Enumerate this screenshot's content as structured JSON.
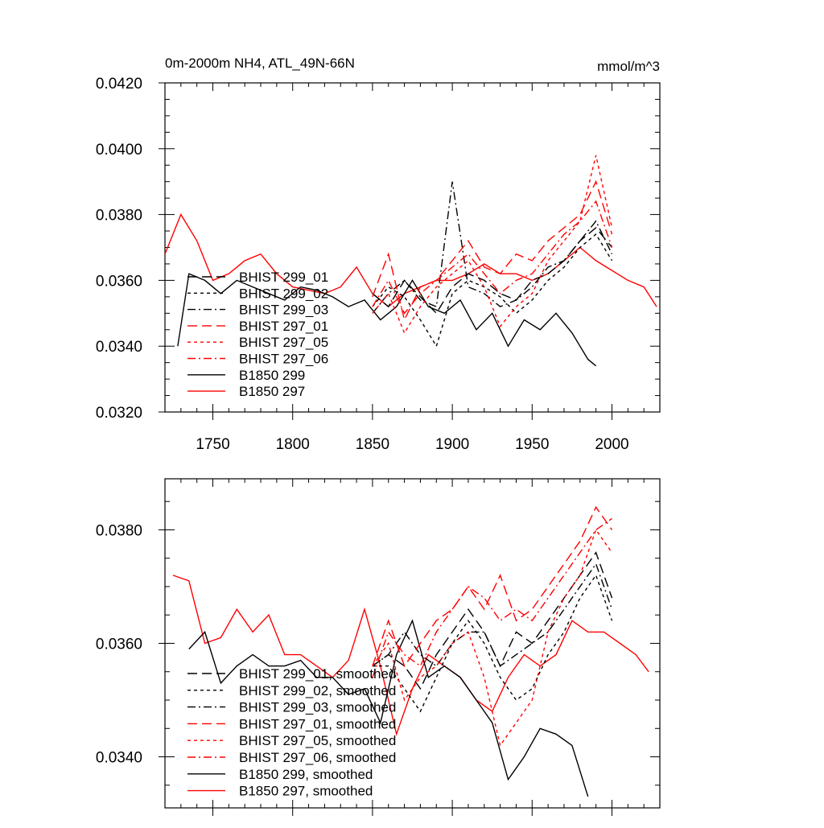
{
  "units": "mmol/m^3",
  "chart_data": [
    {
      "type": "line",
      "title": "0m-2000m NH4, ATL_49N-66N",
      "units": "mmol/m^3",
      "xlim": [
        1720,
        2030
      ],
      "ylim": [
        0.032,
        0.042
      ],
      "x_ticks": [
        1750,
        1800,
        1850,
        1900,
        1950,
        2000
      ],
      "x_tick_labels": [
        "1750",
        "1800",
        "1850",
        "1900",
        "1950",
        "2000"
      ],
      "y_ticks": [
        0.032,
        0.034,
        0.036,
        0.038,
        0.04,
        0.042
      ],
      "y_tick_labels": [
        "0.0320",
        "0.0340",
        "0.0360",
        "0.0380",
        "0.0400",
        "0.0420"
      ],
      "legend": [
        {
          "label": "BHIST 299_01",
          "color": "#000000",
          "dash": "12,6"
        },
        {
          "label": "BHIST 299_02",
          "color": "#000000",
          "dash": "4,4"
        },
        {
          "label": "BHIST 299_03",
          "color": "#000000",
          "dash": "10,4,2,4"
        },
        {
          "label": "BHIST 297_01",
          "color": "#ff0000",
          "dash": "12,6"
        },
        {
          "label": "BHIST 297_05",
          "color": "#ff0000",
          "dash": "4,4"
        },
        {
          "label": "BHIST 297_06",
          "color": "#ff0000",
          "dash": "10,4,2,4"
        },
        {
          "label": "B1850 299",
          "color": "#000000",
          "dash": ""
        },
        {
          "label": "B1850 297",
          "color": "#ff0000",
          "dash": ""
        }
      ],
      "series": [
        {
          "name": "B1850 297",
          "color": "#ff0000",
          "dash": "",
          "x": [
            1720,
            1730,
            1740,
            1750,
            1760,
            1770,
            1780,
            1790,
            1800,
            1810,
            1820,
            1830,
            1840,
            1850,
            1860,
            1870,
            1880,
            1890,
            1900,
            1910,
            1920,
            1930,
            1940,
            1950,
            1960,
            1970,
            1980,
            1990,
            2000,
            2010,
            2020,
            2028
          ],
          "y": [
            0.0368,
            0.038,
            0.0372,
            0.036,
            0.0362,
            0.0366,
            0.0368,
            0.0362,
            0.0358,
            0.0357,
            0.0356,
            0.0358,
            0.0364,
            0.0356,
            0.0352,
            0.0356,
            0.0358,
            0.036,
            0.036,
            0.0362,
            0.0365,
            0.0362,
            0.0362,
            0.036,
            0.0362,
            0.0366,
            0.037,
            0.0366,
            0.0363,
            0.036,
            0.0358,
            0.0352
          ]
        },
        {
          "name": "B1850 299",
          "color": "#000000",
          "dash": "",
          "x": [
            1728,
            1735,
            1745,
            1755,
            1765,
            1775,
            1785,
            1795,
            1805,
            1815,
            1825,
            1835,
            1845,
            1855,
            1865,
            1875,
            1885,
            1895,
            1905,
            1915,
            1925,
            1935,
            1945,
            1955,
            1965,
            1975,
            1985,
            1990
          ],
          "y": [
            0.034,
            0.0362,
            0.036,
            0.0356,
            0.036,
            0.0358,
            0.0356,
            0.0354,
            0.0358,
            0.0357,
            0.0355,
            0.0352,
            0.0354,
            0.0348,
            0.0352,
            0.036,
            0.0352,
            0.035,
            0.0354,
            0.0345,
            0.035,
            0.034,
            0.0348,
            0.0345,
            0.035,
            0.0344,
            0.0336,
            0.0334
          ]
        },
        {
          "name": "BHIST 299_01",
          "color": "#000000",
          "dash": "12,6",
          "x": [
            1850,
            1860,
            1870,
            1880,
            1890,
            1900,
            1910,
            1920,
            1930,
            1940,
            1950,
            1960,
            1970,
            1980,
            1990,
            2000
          ],
          "y": [
            0.0356,
            0.0352,
            0.036,
            0.0355,
            0.035,
            0.0358,
            0.0362,
            0.036,
            0.0356,
            0.0354,
            0.036,
            0.0362,
            0.0366,
            0.0372,
            0.0376,
            0.037
          ]
        },
        {
          "name": "BHIST 299_02",
          "color": "#000000",
          "dash": "4,4",
          "x": [
            1850,
            1860,
            1870,
            1880,
            1890,
            1900,
            1910,
            1920,
            1930,
            1940,
            1950,
            1960,
            1970,
            1980,
            1990,
            2000
          ],
          "y": [
            0.0352,
            0.0358,
            0.0355,
            0.0348,
            0.034,
            0.0356,
            0.036,
            0.0358,
            0.0355,
            0.035,
            0.0354,
            0.036,
            0.0364,
            0.037,
            0.0374,
            0.0366
          ]
        },
        {
          "name": "BHIST 299_03",
          "color": "#000000",
          "dash": "10,4,2,4",
          "x": [
            1850,
            1860,
            1870,
            1880,
            1890,
            1900,
            1910,
            1920,
            1930,
            1940,
            1950,
            1960,
            1970,
            1980,
            1990,
            2000
          ],
          "y": [
            0.035,
            0.0356,
            0.036,
            0.0354,
            0.0352,
            0.039,
            0.0358,
            0.0356,
            0.0352,
            0.0354,
            0.0358,
            0.0364,
            0.0366,
            0.0372,
            0.0378,
            0.0368
          ]
        },
        {
          "name": "BHIST 297_01",
          "color": "#ff0000",
          "dash": "12,6",
          "x": [
            1850,
            1860,
            1870,
            1880,
            1890,
            1900,
            1910,
            1920,
            1930,
            1940,
            1950,
            1960,
            1970,
            1980,
            1990,
            2000
          ],
          "y": [
            0.0355,
            0.0368,
            0.0348,
            0.0358,
            0.036,
            0.0366,
            0.0372,
            0.0364,
            0.0362,
            0.0368,
            0.0366,
            0.0372,
            0.0376,
            0.038,
            0.039,
            0.0374
          ]
        },
        {
          "name": "BHIST 297_05",
          "color": "#ff0000",
          "dash": "4,4",
          "x": [
            1850,
            1860,
            1870,
            1880,
            1890,
            1900,
            1910,
            1920,
            1930,
            1940,
            1950,
            1960,
            1970,
            1980,
            1990,
            2000
          ],
          "y": [
            0.035,
            0.0356,
            0.0344,
            0.0352,
            0.0358,
            0.0362,
            0.0366,
            0.0358,
            0.0346,
            0.0352,
            0.0356,
            0.0366,
            0.0372,
            0.0378,
            0.0398,
            0.0376
          ]
        },
        {
          "name": "BHIST 297_06",
          "color": "#ff0000",
          "dash": "10,4,2,4",
          "x": [
            1850,
            1860,
            1870,
            1880,
            1890,
            1900,
            1910,
            1920,
            1930,
            1940,
            1950,
            1960,
            1970,
            1980,
            1990,
            2000
          ],
          "y": [
            0.0352,
            0.036,
            0.035,
            0.0356,
            0.036,
            0.0364,
            0.0368,
            0.0362,
            0.0356,
            0.036,
            0.0362,
            0.0368,
            0.0374,
            0.0378,
            0.0384,
            0.037
          ]
        }
      ]
    },
    {
      "type": "line",
      "title": "",
      "xlim": [
        1720,
        2030
      ],
      "ylim": [
        0.0331,
        0.0389
      ],
      "x_ticks": [
        1750,
        1800,
        1850,
        1900,
        1950,
        2000
      ],
      "y_ticks": [
        0.034,
        0.036,
        0.038
      ],
      "y_tick_labels": [
        "0.0340",
        "0.0360",
        "0.0380"
      ],
      "legend": [
        {
          "label": "BHIST 299_01, smoothed",
          "color": "#000000",
          "dash": "12,6"
        },
        {
          "label": "BHIST 299_02, smoothed",
          "color": "#000000",
          "dash": "4,4"
        },
        {
          "label": "BHIST 299_03, smoothed",
          "color": "#000000",
          "dash": "10,4,2,4"
        },
        {
          "label": "BHIST 297_01, smoothed",
          "color": "#ff0000",
          "dash": "12,6"
        },
        {
          "label": "BHIST 297_05, smoothed",
          "color": "#ff0000",
          "dash": "4,4"
        },
        {
          "label": "BHIST 297_06, smoothed",
          "color": "#ff0000",
          "dash": "10,4,2,4"
        },
        {
          "label": "B1850 299, smoothed",
          "color": "#000000",
          "dash": ""
        },
        {
          "label": "B1850 297, smoothed",
          "color": "#ff0000",
          "dash": ""
        }
      ],
      "series": [
        {
          "name": "B1850 297, smoothed",
          "color": "#ff0000",
          "dash": "",
          "x": [
            1725,
            1735,
            1745,
            1755,
            1765,
            1775,
            1785,
            1795,
            1805,
            1815,
            1825,
            1835,
            1845,
            1855,
            1865,
            1875,
            1885,
            1895,
            1905,
            1915,
            1925,
            1935,
            1945,
            1955,
            1965,
            1975,
            1985,
            1995,
            2005,
            2015,
            2023
          ],
          "y": [
            0.0372,
            0.0371,
            0.036,
            0.0361,
            0.0366,
            0.0362,
            0.0365,
            0.0358,
            0.0358,
            0.0356,
            0.0354,
            0.0357,
            0.0366,
            0.0356,
            0.0344,
            0.0352,
            0.0358,
            0.0356,
            0.0354,
            0.035,
            0.0348,
            0.0354,
            0.0358,
            0.0356,
            0.0358,
            0.0364,
            0.0362,
            0.0362,
            0.036,
            0.0358,
            0.0355
          ]
        },
        {
          "name": "B1850 299, smoothed",
          "color": "#000000",
          "dash": "",
          "x": [
            1735,
            1745,
            1755,
            1765,
            1775,
            1785,
            1795,
            1805,
            1815,
            1825,
            1835,
            1845,
            1855,
            1865,
            1875,
            1885,
            1895,
            1905,
            1915,
            1925,
            1935,
            1945,
            1955,
            1965,
            1975,
            1985
          ],
          "y": [
            0.0359,
            0.0362,
            0.0353,
            0.0356,
            0.0358,
            0.0356,
            0.0356,
            0.0357,
            0.0354,
            0.0354,
            0.0351,
            0.0352,
            0.0346,
            0.0358,
            0.0364,
            0.0354,
            0.0356,
            0.0354,
            0.035,
            0.0346,
            0.0336,
            0.034,
            0.0345,
            0.0344,
            0.0342,
            0.0333
          ]
        },
        {
          "name": "BHIST 299_01, smoothed",
          "color": "#000000",
          "dash": "12,6",
          "x": [
            1850,
            1860,
            1870,
            1880,
            1890,
            1900,
            1910,
            1920,
            1930,
            1940,
            1950,
            1960,
            1970,
            1980,
            1990,
            2000
          ],
          "y": [
            0.0356,
            0.0358,
            0.0356,
            0.0352,
            0.0358,
            0.0362,
            0.0366,
            0.0362,
            0.0356,
            0.0362,
            0.036,
            0.0364,
            0.0368,
            0.0372,
            0.0376,
            0.0368
          ]
        },
        {
          "name": "BHIST 299_02, smoothed",
          "color": "#000000",
          "dash": "4,4",
          "x": [
            1850,
            1860,
            1870,
            1880,
            1890,
            1900,
            1910,
            1920,
            1930,
            1940,
            1950,
            1960,
            1970,
            1980,
            1990,
            2000
          ],
          "y": [
            0.0356,
            0.0356,
            0.0352,
            0.0348,
            0.0354,
            0.036,
            0.0364,
            0.036,
            0.0354,
            0.035,
            0.0352,
            0.0358,
            0.0362,
            0.0368,
            0.0372,
            0.0364
          ]
        },
        {
          "name": "BHIST 299_03, smoothed",
          "color": "#000000",
          "dash": "10,4,2,4",
          "x": [
            1850,
            1860,
            1870,
            1880,
            1890,
            1900,
            1910,
            1920,
            1930,
            1940,
            1950,
            1960,
            1970,
            1980,
            1990,
            2000
          ],
          "y": [
            0.0356,
            0.0358,
            0.0362,
            0.0358,
            0.0356,
            0.036,
            0.0362,
            0.0362,
            0.0356,
            0.0358,
            0.036,
            0.0362,
            0.0366,
            0.037,
            0.0374,
            0.0366
          ]
        },
        {
          "name": "BHIST 297_01, smoothed",
          "color": "#ff0000",
          "dash": "12,6",
          "x": [
            1850,
            1860,
            1870,
            1880,
            1890,
            1900,
            1910,
            1920,
            1930,
            1940,
            1950,
            1960,
            1970,
            1980,
            1990,
            2000
          ],
          "y": [
            0.0356,
            0.0364,
            0.0356,
            0.036,
            0.0364,
            0.0366,
            0.037,
            0.0366,
            0.0372,
            0.0364,
            0.0366,
            0.037,
            0.0374,
            0.0378,
            0.0384,
            0.038
          ]
        },
        {
          "name": "BHIST 297_05, smoothed",
          "color": "#ff0000",
          "dash": "4,4",
          "x": [
            1850,
            1860,
            1870,
            1880,
            1890,
            1900,
            1910,
            1920,
            1930,
            1940,
            1950,
            1960,
            1970,
            1980,
            1990,
            2000
          ],
          "y": [
            0.0356,
            0.036,
            0.035,
            0.0354,
            0.0356,
            0.036,
            0.0362,
            0.0354,
            0.0342,
            0.0346,
            0.035,
            0.0362,
            0.0368,
            0.0372,
            0.038,
            0.0376
          ]
        },
        {
          "name": "BHIST 297_06, smoothed",
          "color": "#ff0000",
          "dash": "10,4,2,4",
          "x": [
            1850,
            1860,
            1870,
            1880,
            1890,
            1900,
            1910,
            1920,
            1930,
            1940,
            1950,
            1960,
            1970,
            1980,
            1990,
            2000
          ],
          "y": [
            0.0354,
            0.0362,
            0.0358,
            0.0356,
            0.0362,
            0.0366,
            0.037,
            0.0368,
            0.0364,
            0.0366,
            0.0364,
            0.0368,
            0.0372,
            0.0376,
            0.038,
            0.0382
          ]
        }
      ]
    }
  ]
}
